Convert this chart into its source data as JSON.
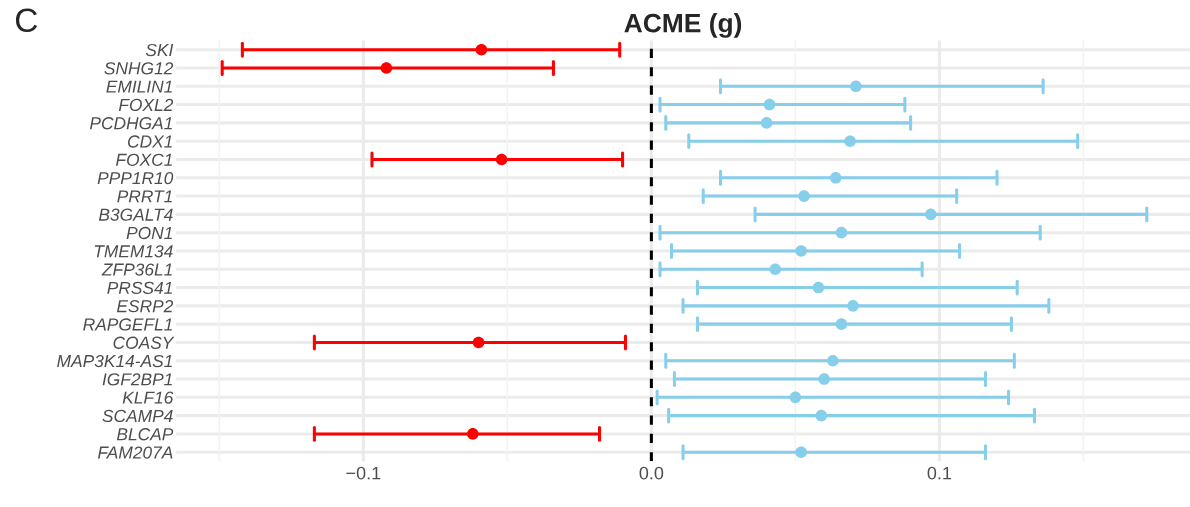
{
  "chart_data": {
    "type": "scatter",
    "orientation": "horizontal",
    "title": "ACME (g)",
    "annotations": [
      "C"
    ],
    "categories": [
      "SKI",
      "SNHG12",
      "EMILIN1",
      "FOXL2",
      "PCDHGA1",
      "CDX1",
      "FOXC1",
      "PPP1R10",
      "PRRT1",
      "B3GALT4",
      "PON1",
      "TMEM134",
      "ZFP36L1",
      "PRSS41",
      "ESRP2",
      "RAPGEFL1",
      "COASY",
      "MAP3K14-AS1",
      "IGF2BP1",
      "KLF16",
      "SCAMP4",
      "BLCAP",
      "FAM207A"
    ],
    "values": [
      -0.059,
      -0.092,
      0.071,
      0.041,
      0.04,
      0.069,
      -0.052,
      0.064,
      0.053,
      0.097,
      0.066,
      0.052,
      0.043,
      0.058,
      0.07,
      0.066,
      -0.06,
      0.063,
      0.06,
      0.05,
      0.059,
      -0.062,
      0.052
    ],
    "errors": [
      [
        -0.142,
        -0.011
      ],
      [
        -0.149,
        -0.034
      ],
      [
        0.024,
        0.136
      ],
      [
        0.003,
        0.088
      ],
      [
        0.005,
        0.09
      ],
      [
        0.013,
        0.148
      ],
      [
        -0.097,
        -0.01
      ],
      [
        0.024,
        0.12
      ],
      [
        0.018,
        0.106
      ],
      [
        0.036,
        0.172
      ],
      [
        0.003,
        0.135
      ],
      [
        0.007,
        0.107
      ],
      [
        0.003,
        0.094
      ],
      [
        0.016,
        0.127
      ],
      [
        0.011,
        0.138
      ],
      [
        0.016,
        0.125
      ],
      [
        -0.117,
        -0.009
      ],
      [
        0.005,
        0.126
      ],
      [
        0.008,
        0.116
      ],
      [
        0.002,
        0.124
      ],
      [
        0.006,
        0.133
      ],
      [
        -0.117,
        -0.018
      ],
      [
        0.011,
        0.116
      ]
    ],
    "colors": [
      "#ff0000",
      "#ff0000",
      "#87ceeb",
      "#87ceeb",
      "#87ceeb",
      "#87ceeb",
      "#ff0000",
      "#87ceeb",
      "#87ceeb",
      "#87ceeb",
      "#87ceeb",
      "#87ceeb",
      "#87ceeb",
      "#87ceeb",
      "#87ceeb",
      "#87ceeb",
      "#ff0000",
      "#87ceeb",
      "#87ceeb",
      "#87ceeb",
      "#87ceeb",
      "#ff0000",
      "#87ceeb"
    ],
    "xlim": [
      -0.165,
      0.187
    ],
    "xticks": [
      {
        "value": -0.15,
        "label": null
      },
      {
        "value": -0.1,
        "label": "−0.1"
      },
      {
        "value": -0.05,
        "label": null
      },
      {
        "value": 0.0,
        "label": "0.0"
      },
      {
        "value": 0.05,
        "label": null
      },
      {
        "value": 0.1,
        "label": "0.1"
      },
      {
        "value": 0.15,
        "label": null
      }
    ],
    "ref_lines": [
      {
        "axis": "x",
        "value": 0.0,
        "color": "#000000",
        "line_style": "dashed"
      }
    ],
    "grid": true,
    "marker": "circle",
    "legend": false
  }
}
